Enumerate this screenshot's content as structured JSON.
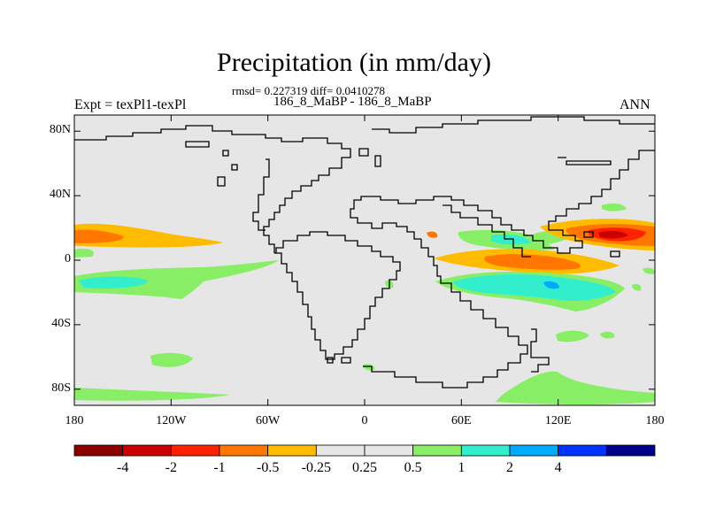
{
  "title": "Precipitation (in mm/day)",
  "stats": "rmsd= 0.227319  diff= 0.0410278",
  "case_label": "186_8_MaBP - 186_8_MaBP",
  "expt_label": "Expt = texPl1-texPl",
  "season": "ANN",
  "axes": {
    "y_ticks": [
      {
        "label": "80N",
        "value": 80
      },
      {
        "label": "40N",
        "value": 40
      },
      {
        "label": "0",
        "value": 0
      },
      {
        "label": "40S",
        "value": -40
      },
      {
        "label": "80S",
        "value": -80
      }
    ],
    "x_ticks": [
      {
        "label": "180",
        "value": -180
      },
      {
        "label": "120W",
        "value": -120
      },
      {
        "label": "60W",
        "value": -60
      },
      {
        "label": "0",
        "value": 0
      },
      {
        "label": "60E",
        "value": 60
      },
      {
        "label": "120E",
        "value": 120
      },
      {
        "label": "180",
        "value": 180
      }
    ],
    "lon_range": [
      -180,
      180
    ],
    "lat_range": [
      -90,
      90
    ]
  },
  "colorbar": {
    "colors": [
      "#8b0000",
      "#cc0000",
      "#ff2200",
      "#ff7700",
      "#ffbb00",
      "#e6e6e6",
      "#e6e6e6",
      "#88ee66",
      "#33eecc",
      "#00aaff",
      "#0033ff",
      "#000088"
    ],
    "labels": [
      "-4",
      "-2",
      "-1",
      "-0.5",
      "-0.25",
      "0.25",
      "0.5",
      "1",
      "2",
      "4"
    ]
  },
  "colors": {
    "background": "#e6e6e6",
    "coastline": "#000000"
  }
}
